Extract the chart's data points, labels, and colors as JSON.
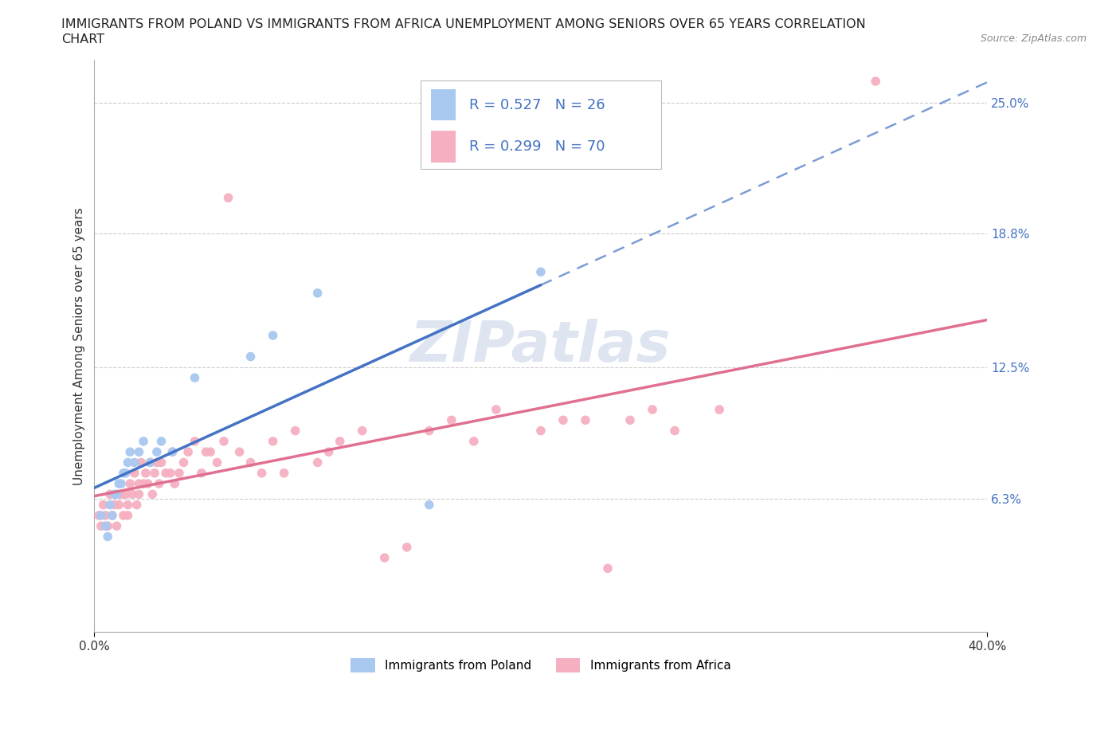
{
  "title_line1": "IMMIGRANTS FROM POLAND VS IMMIGRANTS FROM AFRICA UNEMPLOYMENT AMONG SENIORS OVER 65 YEARS CORRELATION",
  "title_line2": "CHART",
  "source": "Source: ZipAtlas.com",
  "ylabel": "Unemployment Among Seniors over 65 years",
  "xlim": [
    0.0,
    40.0
  ],
  "ylim": [
    0.0,
    27.0
  ],
  "right_yticks": [
    6.3,
    12.5,
    18.8,
    25.0
  ],
  "right_yticklabels": [
    "6.3%",
    "12.5%",
    "18.8%",
    "25.0%"
  ],
  "poland_color": "#a8c8f0",
  "africa_color": "#f5afc0",
  "poland_line_color": "#4472c4",
  "africa_line_color": "#e07090",
  "poland_line_solid_end": 20,
  "R_poland": "0.527",
  "N_poland": "26",
  "R_africa": "0.299",
  "N_africa": "70",
  "poland_x": [
    0.3,
    0.5,
    0.6,
    0.7,
    0.8,
    0.9,
    1.0,
    1.1,
    1.2,
    1.3,
    1.4,
    1.5,
    1.6,
    1.8,
    2.0,
    2.2,
    2.5,
    2.8,
    3.0,
    3.5,
    4.5,
    7.0,
    8.0,
    10.0,
    15.0,
    20.0
  ],
  "poland_y": [
    5.5,
    5.0,
    4.5,
    6.0,
    5.5,
    6.5,
    6.5,
    7.0,
    7.0,
    7.5,
    7.5,
    8.0,
    8.5,
    8.0,
    8.5,
    9.0,
    8.0,
    8.5,
    9.0,
    8.5,
    12.0,
    13.0,
    14.0,
    16.0,
    6.0,
    17.0
  ],
  "africa_x": [
    0.2,
    0.3,
    0.4,
    0.5,
    0.6,
    0.7,
    0.8,
    0.9,
    1.0,
    1.1,
    1.2,
    1.3,
    1.4,
    1.5,
    1.5,
    1.6,
    1.7,
    1.8,
    1.9,
    2.0,
    2.0,
    2.1,
    2.2,
    2.3,
    2.4,
    2.5,
    2.6,
    2.7,
    2.8,
    2.9,
    3.0,
    3.2,
    3.4,
    3.5,
    3.6,
    3.8,
    4.0,
    4.2,
    4.5,
    4.8,
    5.0,
    5.2,
    5.5,
    5.8,
    6.0,
    6.5,
    7.0,
    7.5,
    8.0,
    8.5,
    9.0,
    10.0,
    10.5,
    11.0,
    12.0,
    13.0,
    14.0,
    15.0,
    16.0,
    17.0,
    18.0,
    20.0,
    21.0,
    22.0,
    23.0,
    24.0,
    25.0,
    26.0,
    28.0,
    35.0
  ],
  "africa_y": [
    5.5,
    5.0,
    6.0,
    5.5,
    5.0,
    6.5,
    5.5,
    6.0,
    5.0,
    6.0,
    6.5,
    5.5,
    6.5,
    6.0,
    5.5,
    7.0,
    6.5,
    7.5,
    6.0,
    7.0,
    6.5,
    8.0,
    7.0,
    7.5,
    7.0,
    8.0,
    6.5,
    7.5,
    8.0,
    7.0,
    8.0,
    7.5,
    7.5,
    8.5,
    7.0,
    7.5,
    8.0,
    8.5,
    9.0,
    7.5,
    8.5,
    8.5,
    8.0,
    9.0,
    20.5,
    8.5,
    8.0,
    7.5,
    9.0,
    7.5,
    9.5,
    8.0,
    8.5,
    9.0,
    9.5,
    3.5,
    4.0,
    9.5,
    10.0,
    9.0,
    10.5,
    9.5,
    10.0,
    10.0,
    3.0,
    10.0,
    10.5,
    9.5,
    10.5,
    26.0
  ],
  "background_color": "#ffffff",
  "grid_color": "#cccccc",
  "watermark": "ZIPatlas",
  "watermark_color": "#c8d4e8"
}
